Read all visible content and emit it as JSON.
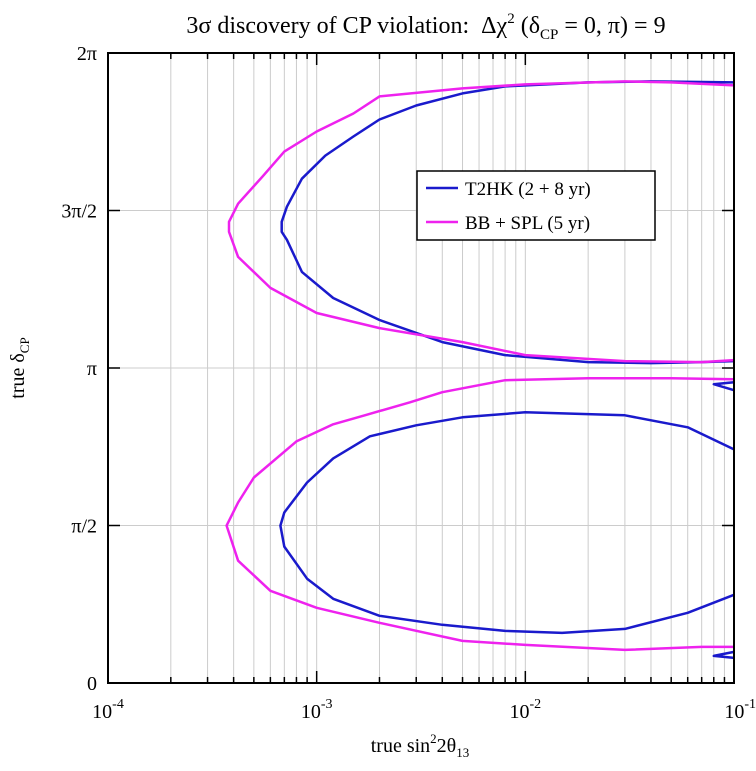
{
  "chart_data": {
    "type": "line",
    "title": {
      "main": "3σ discovery of CP violation:",
      "delta_chi": "Δχ",
      "sup": "2",
      "open": " (δ",
      "sub": "CP",
      "close": " = 0, π) = 9"
    },
    "xlabel": {
      "pre": "true  sin",
      "sup": "2",
      "mid": "2θ",
      "sub": "13"
    },
    "ylabel": {
      "pre": "true  δ",
      "sub": "CP"
    },
    "x_scale": "log",
    "xlim": [
      0.0001,
      0.1
    ],
    "ylim": [
      0,
      6.2832
    ],
    "x_ticks": [
      {
        "value": 0.0001,
        "base": "10",
        "exp": "-4"
      },
      {
        "value": 0.001,
        "base": "10",
        "exp": "-3"
      },
      {
        "value": 0.01,
        "base": "10",
        "exp": "-2"
      },
      {
        "value": 0.1,
        "base": "10",
        "exp": "-1"
      }
    ],
    "y_ticks": [
      {
        "value": 0,
        "label": "0"
      },
      {
        "value": 1.5708,
        "label": "π/2"
      },
      {
        "value": 3.1416,
        "label": "π"
      },
      {
        "value": 4.7124,
        "label": "3π/2"
      },
      {
        "value": 6.2832,
        "label": "2π"
      }
    ],
    "grid": true,
    "legend": "upper-right",
    "series": [
      {
        "name": "T2HK (2 + 8 yr)",
        "color": "#1a1acc",
        "segments": [
          [
            [
              0.1,
              5.99
            ],
            [
              0.04,
              6.0
            ],
            [
              0.02,
              5.99
            ],
            [
              0.008,
              5.95
            ],
            [
              0.005,
              5.88
            ],
            [
              0.003,
              5.76
            ],
            [
              0.002,
              5.62
            ],
            [
              0.0015,
              5.45
            ],
            [
              0.0011,
              5.26
            ],
            [
              0.00085,
              5.03
            ],
            [
              0.00072,
              4.75
            ],
            [
              0.00068,
              4.6
            ],
            [
              0.00068,
              4.5
            ],
            [
              0.00072,
              4.42
            ],
            [
              0.00085,
              4.1
            ],
            [
              0.0012,
              3.84
            ],
            [
              0.002,
              3.62
            ],
            [
              0.004,
              3.4
            ],
            [
              0.008,
              3.27
            ],
            [
              0.02,
              3.2
            ],
            [
              0.04,
              3.19
            ],
            [
              0.07,
              3.2
            ],
            [
              0.1,
              3.21
            ]
          ],
          [
            [
              0.1,
              2.33
            ],
            [
              0.06,
              2.55
            ],
            [
              0.03,
              2.67
            ],
            [
              0.01,
              2.7
            ],
            [
              0.005,
              2.65
            ],
            [
              0.003,
              2.57
            ],
            [
              0.0018,
              2.46
            ],
            [
              0.0012,
              2.24
            ],
            [
              0.0009,
              2.0
            ],
            [
              0.0007,
              1.7
            ],
            [
              0.00067,
              1.57
            ],
            [
              0.0007,
              1.36
            ],
            [
              0.0009,
              1.04
            ],
            [
              0.0012,
              0.84
            ],
            [
              0.002,
              0.67
            ],
            [
              0.004,
              0.58
            ],
            [
              0.008,
              0.52
            ],
            [
              0.015,
              0.5
            ],
            [
              0.03,
              0.54
            ],
            [
              0.06,
              0.7
            ],
            [
              0.1,
              0.88
            ]
          ],
          [
            [
              0.1,
              2.92
            ],
            [
              0.08,
              2.98
            ],
            [
              0.1,
              3.0
            ]
          ],
          [
            [
              0.1,
              0.25
            ],
            [
              0.08,
              0.27
            ],
            [
              0.1,
              0.31
            ]
          ]
        ]
      },
      {
        "name": "BB + SPL (5 yr)",
        "color": "#ee22ee",
        "segments": [
          [
            [
              0.1,
              5.96
            ],
            [
              0.05,
              5.99
            ],
            [
              0.03,
              6.0
            ],
            [
              0.01,
              5.97
            ],
            [
              0.005,
              5.93
            ],
            [
              0.002,
              5.85
            ],
            [
              0.0015,
              5.68
            ],
            [
              0.001,
              5.5
            ],
            [
              0.0007,
              5.3
            ],
            [
              0.00055,
              5.05
            ],
            [
              0.00042,
              4.78
            ],
            [
              0.00038,
              4.6
            ],
            [
              0.00038,
              4.5
            ],
            [
              0.00042,
              4.25
            ],
            [
              0.0006,
              3.94
            ],
            [
              0.001,
              3.69
            ],
            [
              0.002,
              3.54
            ],
            [
              0.005,
              3.4
            ],
            [
              0.01,
              3.27
            ],
            [
              0.03,
              3.21
            ],
            [
              0.07,
              3.2
            ],
            [
              0.1,
              3.22
            ]
          ],
          [
            [
              0.1,
              3.03
            ],
            [
              0.05,
              3.04
            ],
            [
              0.02,
              3.04
            ],
            [
              0.008,
              3.02
            ],
            [
              0.004,
              2.9
            ],
            [
              0.0028,
              2.8
            ],
            [
              0.0017,
              2.67
            ],
            [
              0.0012,
              2.58
            ],
            [
              0.0008,
              2.41
            ],
            [
              0.0005,
              2.05
            ],
            [
              0.00042,
              1.8
            ],
            [
              0.00037,
              1.57
            ],
            [
              0.00042,
              1.22
            ],
            [
              0.0006,
              0.92
            ],
            [
              0.001,
              0.75
            ],
            [
              0.002,
              0.6
            ],
            [
              0.005,
              0.42
            ],
            [
              0.01,
              0.38
            ],
            [
              0.03,
              0.33
            ],
            [
              0.07,
              0.36
            ],
            [
              0.1,
              0.36
            ]
          ]
        ]
      }
    ]
  }
}
